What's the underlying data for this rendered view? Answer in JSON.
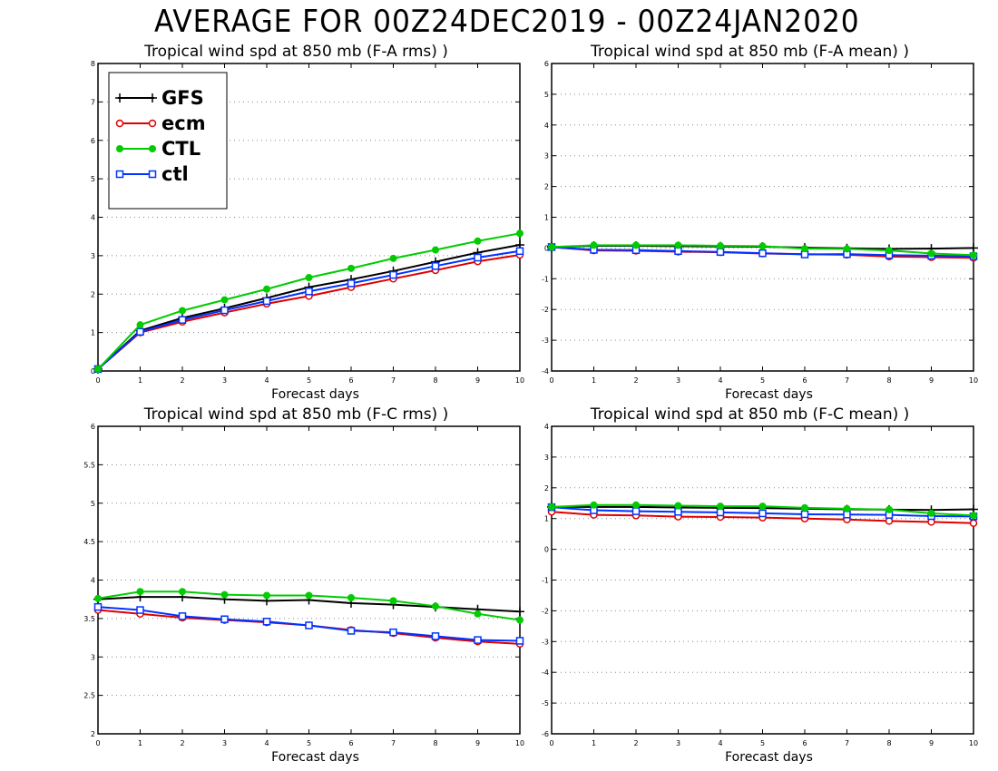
{
  "title": "AVERAGE FOR 00Z24DEC2019 - 00Z24JAN2020",
  "legend": {
    "entries": [
      {
        "name": "GFS",
        "color": "#000000",
        "marker": "plus"
      },
      {
        "name": "ecm",
        "color": "#e00000",
        "marker": "open-circle"
      },
      {
        "name": "CTL",
        "color": "#00cc00",
        "marker": "filled-circle"
      },
      {
        "name": "ctl",
        "color": "#0033ff",
        "marker": "open-square"
      }
    ]
  },
  "chart_data": [
    {
      "type": "line",
      "title": "Tropical wind spd at 850 mb (F-A rms) )",
      "xlabel": "Forecast days",
      "ylabel": "",
      "x": [
        0,
        1,
        2,
        3,
        4,
        5,
        6,
        7,
        8,
        9,
        10
      ],
      "xlim": [
        0,
        10
      ],
      "ylim": [
        0,
        8
      ],
      "yticks": [
        "0",
        "1",
        "2",
        "3",
        "4",
        "5",
        "6",
        "7",
        "8"
      ],
      "grid": "horizontal dotted",
      "legend": "top-left",
      "series": [
        {
          "name": "GFS",
          "values": [
            0.05,
            1.05,
            1.38,
            1.63,
            1.9,
            2.18,
            2.38,
            2.6,
            2.84,
            3.08,
            3.28
          ]
        },
        {
          "name": "ecm",
          "values": [
            0.05,
            1.0,
            1.28,
            1.52,
            1.75,
            1.95,
            2.18,
            2.4,
            2.62,
            2.85,
            3.02
          ]
        },
        {
          "name": "CTL",
          "values": [
            0.05,
            1.2,
            1.57,
            1.85,
            2.13,
            2.43,
            2.67,
            2.93,
            3.15,
            3.38,
            3.58
          ]
        },
        {
          "name": "ctl",
          "values": [
            0.05,
            1.02,
            1.33,
            1.58,
            1.82,
            2.07,
            2.28,
            2.5,
            2.73,
            2.95,
            3.12
          ]
        }
      ]
    },
    {
      "type": "line",
      "title": "Tropical wind spd at 850 mb (F-A mean) )",
      "xlabel": "Forecast days",
      "ylabel": "",
      "x": [
        0,
        1,
        2,
        3,
        4,
        5,
        6,
        7,
        8,
        9,
        10
      ],
      "xlim": [
        0,
        10
      ],
      "ylim": [
        -4,
        6
      ],
      "yticks": [
        "-4",
        "-3",
        "-2",
        "-1",
        "0",
        "1",
        "2",
        "3",
        "4",
        "5",
        "6"
      ],
      "grid": "horizontal dotted",
      "series": [
        {
          "name": "GFS",
          "values": [
            0.03,
            0.07,
            0.07,
            0.06,
            0.05,
            0.04,
            0.01,
            -0.01,
            -0.03,
            -0.02,
            0.0
          ]
        },
        {
          "name": "ecm",
          "values": [
            0.03,
            -0.08,
            -0.09,
            -0.12,
            -0.14,
            -0.18,
            -0.2,
            -0.22,
            -0.28,
            -0.3,
            -0.32
          ]
        },
        {
          "name": "CTL",
          "values": [
            0.03,
            0.09,
            0.09,
            0.09,
            0.07,
            0.06,
            -0.02,
            -0.03,
            -0.08,
            -0.18,
            -0.23
          ]
        },
        {
          "name": "ctl",
          "values": [
            0.03,
            -0.06,
            -0.07,
            -0.1,
            -0.13,
            -0.17,
            -0.21,
            -0.2,
            -0.23,
            -0.25,
            -0.27
          ]
        }
      ]
    },
    {
      "type": "line",
      "title": "Tropical wind spd at 850 mb (F-C rms) )",
      "xlabel": "Forecast days",
      "ylabel": "",
      "x": [
        0,
        1,
        2,
        3,
        4,
        5,
        6,
        7,
        8,
        9,
        10
      ],
      "xlim": [
        0,
        10
      ],
      "ylim": [
        2,
        6
      ],
      "yticks": [
        "2",
        "2.5",
        "3",
        "3.5",
        "4",
        "4.5",
        "5",
        "5.5",
        "6"
      ],
      "grid": "horizontal dotted",
      "series": [
        {
          "name": "GFS",
          "values": [
            3.75,
            3.78,
            3.78,
            3.75,
            3.73,
            3.74,
            3.7,
            3.68,
            3.65,
            3.62,
            3.59
          ]
        },
        {
          "name": "ecm",
          "values": [
            3.61,
            3.56,
            3.51,
            3.48,
            3.45,
            3.41,
            3.35,
            3.31,
            3.25,
            3.2,
            3.17
          ]
        },
        {
          "name": "CTL",
          "values": [
            3.76,
            3.85,
            3.85,
            3.81,
            3.8,
            3.8,
            3.77,
            3.73,
            3.66,
            3.56,
            3.48
          ]
        },
        {
          "name": "ctl",
          "values": [
            3.65,
            3.61,
            3.53,
            3.49,
            3.46,
            3.41,
            3.34,
            3.32,
            3.27,
            3.22,
            3.21
          ]
        }
      ]
    },
    {
      "type": "line",
      "title": "Tropical wind spd at 850 mb (F-C mean) )",
      "xlabel": "Forecast days",
      "ylabel": "",
      "x": [
        0,
        1,
        2,
        3,
        4,
        5,
        6,
        7,
        8,
        9,
        10
      ],
      "xlim": [
        0,
        10
      ],
      "ylim": [
        -6,
        4
      ],
      "yticks": [
        "-6",
        "-5",
        "-4",
        "-3",
        "-2",
        "-1",
        "0",
        "1",
        "2",
        "3",
        "4"
      ],
      "grid": "horizontal dotted",
      "series": [
        {
          "name": "GFS",
          "values": [
            1.38,
            1.38,
            1.38,
            1.36,
            1.35,
            1.34,
            1.32,
            1.3,
            1.29,
            1.28,
            1.3
          ]
        },
        {
          "name": "ecm",
          "values": [
            1.22,
            1.12,
            1.1,
            1.06,
            1.05,
            1.03,
            1.0,
            0.97,
            0.92,
            0.89,
            0.85
          ]
        },
        {
          "name": "CTL",
          "values": [
            1.38,
            1.44,
            1.44,
            1.42,
            1.4,
            1.4,
            1.35,
            1.32,
            1.29,
            1.17,
            1.1
          ]
        },
        {
          "name": "ctl",
          "values": [
            1.37,
            1.27,
            1.24,
            1.22,
            1.2,
            1.17,
            1.14,
            1.13,
            1.12,
            1.08,
            1.07
          ]
        }
      ]
    }
  ]
}
